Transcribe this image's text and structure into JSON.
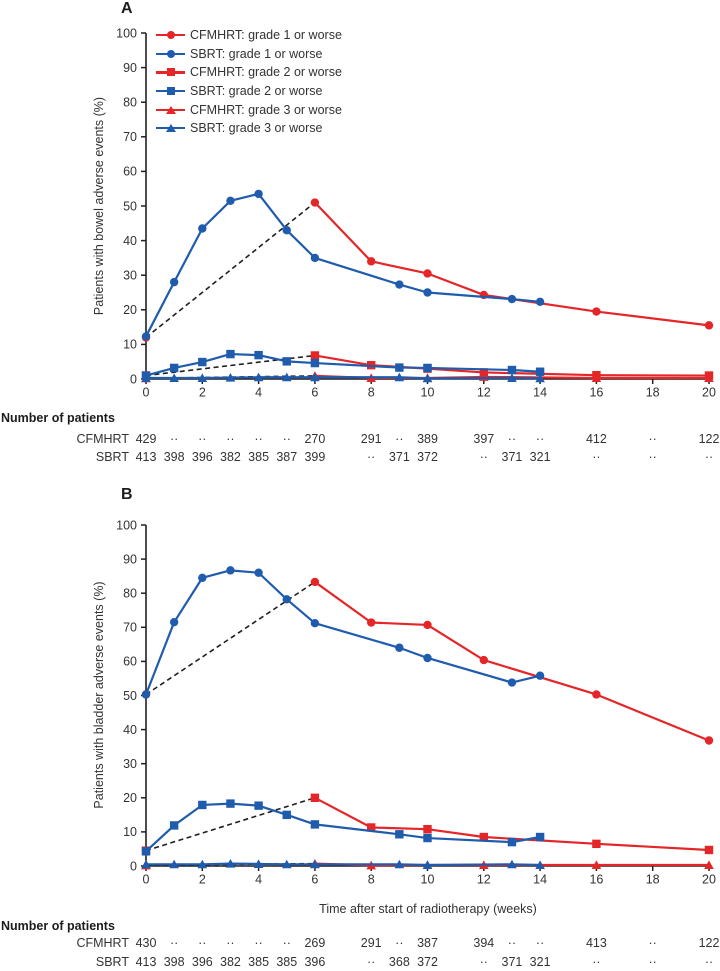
{
  "colors": {
    "cfmhrt": "#e52629",
    "sbrt": "#1f5cad",
    "dash": "#1f1f1f",
    "axis": "#231f20",
    "text": "#333336"
  },
  "legend": [
    {
      "label": "CFMHRT: grade 1 or worse",
      "group": "cfmhrt",
      "marker": "circle"
    },
    {
      "label": "SBRT: grade 1 or worse",
      "group": "sbrt",
      "marker": "circle"
    },
    {
      "label": "CFMHRT: grade 2 or worse",
      "group": "cfmhrt",
      "marker": "square"
    },
    {
      "label": "SBRT: grade 2 or worse",
      "group": "sbrt",
      "marker": "square"
    },
    {
      "label": "CFMHRT: grade 3 or worse",
      "group": "cfmhrt",
      "marker": "triangle"
    },
    {
      "label": "SBRT: grade 3 or worse",
      "group": "sbrt",
      "marker": "triangle"
    }
  ],
  "chart_data": [
    {
      "type": "line",
      "panel": "A",
      "ylabel": "Patients with bowel adverse events (%)",
      "xlabel": "",
      "xlim": [
        0,
        20
      ],
      "ylim": [
        0,
        100
      ],
      "xticks": [
        0,
        2,
        4,
        6,
        8,
        10,
        12,
        14,
        16,
        18,
        20
      ],
      "yticks": [
        0,
        10,
        20,
        30,
        40,
        50,
        60,
        70,
        80,
        90,
        100
      ],
      "legend_position": "top-left",
      "grid": false,
      "dashed_note": "dashed black segments join baseline (week 0) to first CFMHRT follow-up (week 6)",
      "series": [
        {
          "name": "CFMHRT: grade 1 or worse",
          "group": "cfmhrt",
          "marker": "circle",
          "dash_first_segment": true,
          "points": [
            [
              0,
              12
            ],
            [
              6,
              51
            ],
            [
              8,
              34
            ],
            [
              10,
              30.5
            ],
            [
              12,
              24.3
            ],
            [
              16,
              19.5
            ],
            [
              20,
              15.5
            ]
          ]
        },
        {
          "name": "SBRT: grade 1 or worse",
          "group": "sbrt",
          "marker": "circle",
          "dash_first_segment": false,
          "points": [
            [
              0,
              12.3
            ],
            [
              1,
              28
            ],
            [
              2,
              43.5
            ],
            [
              3,
              51.5
            ],
            [
              4,
              53.5
            ],
            [
              5,
              43
            ],
            [
              6,
              35
            ],
            [
              9,
              27.3
            ],
            [
              10,
              25
            ],
            [
              13,
              23.1
            ],
            [
              14,
              22.3
            ]
          ]
        },
        {
          "name": "CFMHRT: grade 2 or worse",
          "group": "cfmhrt",
          "marker": "square",
          "dash_first_segment": true,
          "points": [
            [
              0,
              1
            ],
            [
              6,
              6.8
            ],
            [
              8,
              4
            ],
            [
              10,
              3
            ],
            [
              12,
              1.9
            ],
            [
              16,
              1.1
            ],
            [
              20,
              1
            ]
          ]
        },
        {
          "name": "SBRT: grade 2 or worse",
          "group": "sbrt",
          "marker": "square",
          "dash_first_segment": false,
          "points": [
            [
              0,
              1
            ],
            [
              1,
              3.2
            ],
            [
              2,
              4.9
            ],
            [
              3,
              7.2
            ],
            [
              4,
              6.9
            ],
            [
              5,
              5.1
            ],
            [
              6,
              4.6
            ],
            [
              9,
              3.3
            ],
            [
              10,
              3.2
            ],
            [
              13,
              2.6
            ],
            [
              14,
              2.1
            ]
          ]
        },
        {
          "name": "CFMHRT: grade 3 or worse",
          "group": "cfmhrt",
          "marker": "triangle",
          "dash_first_segment": true,
          "points": [
            [
              0,
              0.2
            ],
            [
              6,
              0.9
            ],
            [
              8,
              0.3
            ],
            [
              10,
              0.3
            ],
            [
              12,
              0.6
            ],
            [
              16,
              0.3
            ],
            [
              20,
              0.3
            ]
          ]
        },
        {
          "name": "SBRT: grade 3 or worse",
          "group": "sbrt",
          "marker": "triangle",
          "dash_first_segment": false,
          "points": [
            [
              0,
              0.3
            ],
            [
              1,
              0.3
            ],
            [
              2,
              0.3
            ],
            [
              3,
              0.4
            ],
            [
              4,
              0.5
            ],
            [
              5,
              0.5
            ],
            [
              6,
              0.5
            ],
            [
              9,
              0.5
            ],
            [
              10,
              0.2
            ],
            [
              13,
              0.3
            ],
            [
              14,
              0.2
            ]
          ]
        }
      ],
      "number_of_patients": {
        "title": "Number of patients",
        "rows": [
          {
            "label": "CFMHRT",
            "values": [
              {
                "week": 0,
                "n": "429"
              },
              {
                "week": 1,
                "n": "··"
              },
              {
                "week": 2,
                "n": "··"
              },
              {
                "week": 3,
                "n": "··"
              },
              {
                "week": 4,
                "n": "··"
              },
              {
                "week": 5,
                "n": "··"
              },
              {
                "week": 6,
                "n": "270"
              },
              {
                "week": 8,
                "n": "291"
              },
              {
                "week": 9,
                "n": "··"
              },
              {
                "week": 10,
                "n": "389"
              },
              {
                "week": 12,
                "n": "397"
              },
              {
                "week": 13,
                "n": "··"
              },
              {
                "week": 14,
                "n": "··"
              },
              {
                "week": 16,
                "n": "412"
              },
              {
                "week": 18,
                "n": "··"
              },
              {
                "week": 20,
                "n": "122"
              }
            ]
          },
          {
            "label": "SBRT",
            "values": [
              {
                "week": 0,
                "n": "413"
              },
              {
                "week": 1,
                "n": "398"
              },
              {
                "week": 2,
                "n": "396"
              },
              {
                "week": 3,
                "n": "382"
              },
              {
                "week": 4,
                "n": "385"
              },
              {
                "week": 5,
                "n": "387"
              },
              {
                "week": 6,
                "n": "399"
              },
              {
                "week": 8,
                "n": "··"
              },
              {
                "week": 9,
                "n": "371"
              },
              {
                "week": 10,
                "n": "372"
              },
              {
                "week": 12,
                "n": "··"
              },
              {
                "week": 13,
                "n": "371"
              },
              {
                "week": 14,
                "n": "321"
              },
              {
                "week": 16,
                "n": "··"
              },
              {
                "week": 18,
                "n": "··"
              },
              {
                "week": 20,
                "n": "··"
              }
            ]
          }
        ]
      }
    },
    {
      "type": "line",
      "panel": "B",
      "ylabel": "Patients with bladder adverse events (%)",
      "xlabel": "Time after start of radiotherapy (weeks)",
      "xlim": [
        0,
        20
      ],
      "ylim": [
        0,
        100
      ],
      "xticks": [
        0,
        2,
        4,
        6,
        8,
        10,
        12,
        14,
        16,
        18,
        20
      ],
      "yticks": [
        0,
        10,
        20,
        30,
        40,
        50,
        60,
        70,
        80,
        90,
        100
      ],
      "legend_position": "none",
      "grid": false,
      "dashed_note": "dashed black segments join baseline (week 0) to first CFMHRT follow-up (week 6)",
      "series": [
        {
          "name": "CFMHRT: grade 1 or worse",
          "group": "cfmhrt",
          "marker": "circle",
          "dash_first_segment": true,
          "points": [
            [
              0,
              50.3
            ],
            [
              6,
              83.3
            ],
            [
              8,
              71.4
            ],
            [
              10,
              70.7
            ],
            [
              12,
              60.4
            ],
            [
              16,
              50.3
            ],
            [
              20,
              36.8
            ]
          ]
        },
        {
          "name": "SBRT: grade 1 or worse",
          "group": "sbrt",
          "marker": "circle",
          "dash_first_segment": false,
          "points": [
            [
              0,
              50.3
            ],
            [
              1,
              71.5
            ],
            [
              2,
              84.5
            ],
            [
              3,
              86.7
            ],
            [
              4,
              86
            ],
            [
              5,
              78.2
            ],
            [
              6,
              71.2
            ],
            [
              9,
              64
            ],
            [
              10,
              61
            ],
            [
              13,
              53.8
            ],
            [
              14,
              55.8
            ]
          ]
        },
        {
          "name": "CFMHRT: grade 2 or worse",
          "group": "cfmhrt",
          "marker": "square",
          "dash_first_segment": true,
          "points": [
            [
              0,
              4.5
            ],
            [
              6,
              20
            ],
            [
              8,
              11.3
            ],
            [
              10,
              10.8
            ],
            [
              12,
              8.5
            ],
            [
              16,
              6.5
            ],
            [
              20,
              4.7
            ]
          ]
        },
        {
          "name": "SBRT: grade 2 or worse",
          "group": "sbrt",
          "marker": "square",
          "dash_first_segment": false,
          "points": [
            [
              0,
              4.3
            ],
            [
              1,
              11.9
            ],
            [
              2,
              17.9
            ],
            [
              3,
              18.3
            ],
            [
              4,
              17.7
            ],
            [
              5,
              15
            ],
            [
              6,
              12.2
            ],
            [
              9,
              9.3
            ],
            [
              10,
              8.2
            ],
            [
              13,
              7
            ],
            [
              14,
              8.5
            ]
          ]
        },
        {
          "name": "CFMHRT: grade 3 or worse",
          "group": "cfmhrt",
          "marker": "triangle",
          "dash_first_segment": true,
          "points": [
            [
              0,
              0.2
            ],
            [
              6,
              0.7
            ],
            [
              8,
              0.2
            ],
            [
              10,
              0.3
            ],
            [
              12,
              0.3
            ],
            [
              16,
              0.3
            ],
            [
              20,
              0.3
            ]
          ]
        },
        {
          "name": "SBRT: grade 3 or worse",
          "group": "sbrt",
          "marker": "triangle",
          "dash_first_segment": false,
          "points": [
            [
              0,
              0.5
            ],
            [
              1,
              0.5
            ],
            [
              2,
              0.5
            ],
            [
              3,
              0.7
            ],
            [
              4,
              0.6
            ],
            [
              5,
              0.5
            ],
            [
              6,
              0.5
            ],
            [
              9,
              0.5
            ],
            [
              10,
              0.3
            ],
            [
              13,
              0.5
            ],
            [
              14,
              0.3
            ]
          ]
        }
      ],
      "number_of_patients": {
        "title": "Number of patients",
        "rows": [
          {
            "label": "CFMHRT",
            "values": [
              {
                "week": 0,
                "n": "430"
              },
              {
                "week": 1,
                "n": "··"
              },
              {
                "week": 2,
                "n": "··"
              },
              {
                "week": 3,
                "n": "··"
              },
              {
                "week": 4,
                "n": "··"
              },
              {
                "week": 5,
                "n": "··"
              },
              {
                "week": 6,
                "n": "269"
              },
              {
                "week": 8,
                "n": "291"
              },
              {
                "week": 9,
                "n": "··"
              },
              {
                "week": 10,
                "n": "387"
              },
              {
                "week": 12,
                "n": "394"
              },
              {
                "week": 13,
                "n": "··"
              },
              {
                "week": 14,
                "n": "··"
              },
              {
                "week": 16,
                "n": "413"
              },
              {
                "week": 18,
                "n": "··"
              },
              {
                "week": 20,
                "n": "122"
              }
            ]
          },
          {
            "label": "SBRT",
            "values": [
              {
                "week": 0,
                "n": "413"
              },
              {
                "week": 1,
                "n": "398"
              },
              {
                "week": 2,
                "n": "396"
              },
              {
                "week": 3,
                "n": "382"
              },
              {
                "week": 4,
                "n": "385"
              },
              {
                "week": 5,
                "n": "385"
              },
              {
                "week": 6,
                "n": "396"
              },
              {
                "week": 8,
                "n": "··"
              },
              {
                "week": 9,
                "n": "368"
              },
              {
                "week": 10,
                "n": "372"
              },
              {
                "week": 12,
                "n": "··"
              },
              {
                "week": 13,
                "n": "371"
              },
              {
                "week": 14,
                "n": "321"
              },
              {
                "week": 16,
                "n": "··"
              },
              {
                "week": 18,
                "n": "··"
              },
              {
                "week": 20,
                "n": "··"
              }
            ]
          }
        ]
      }
    }
  ]
}
